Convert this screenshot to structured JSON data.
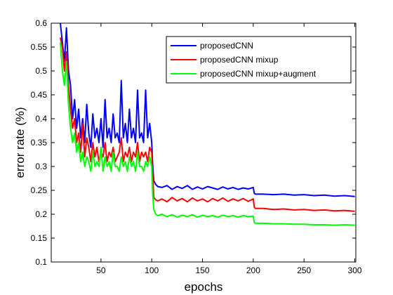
{
  "chart_data": {
    "type": "line",
    "title": "",
    "xlabel": "epochs",
    "ylabel": "error rate (%)",
    "xlim": [
      1,
      301
    ],
    "ylim": [
      0.1,
      0.6
    ],
    "xticks": [
      50,
      100,
      150,
      200,
      250,
      300
    ],
    "yticks": [
      0.1,
      0.15,
      0.2,
      0.25,
      0.3,
      0.35,
      0.4,
      0.45,
      0.5,
      0.55,
      0.6
    ],
    "ytick_labels": [
      "0.1",
      "0.15",
      "0.2",
      "0.25",
      "0.3",
      "0.35",
      "0.4",
      "0.45",
      "0.5",
      "0.55",
      "0.6"
    ],
    "grid": false,
    "legend_position": "top-right",
    "series": [
      {
        "name": "proposedCNN",
        "color": "#0000ff",
        "x": [
          10,
          12,
          14,
          16,
          18,
          20,
          22,
          24,
          26,
          28,
          30,
          32,
          34,
          36,
          38,
          40,
          42,
          44,
          46,
          48,
          50,
          52,
          54,
          56,
          58,
          60,
          62,
          64,
          66,
          68,
          70,
          72,
          74,
          76,
          78,
          80,
          82,
          84,
          86,
          88,
          90,
          92,
          94,
          96,
          98,
          100,
          101,
          102,
          104,
          106,
          110,
          115,
          120,
          125,
          130,
          135,
          140,
          145,
          150,
          155,
          160,
          165,
          170,
          175,
          180,
          185,
          190,
          195,
          200,
          201,
          202,
          210,
          220,
          230,
          240,
          250,
          260,
          270,
          280,
          290,
          300
        ],
        "y": [
          0.6,
          0.56,
          0.52,
          0.59,
          0.5,
          0.47,
          0.4,
          0.44,
          0.38,
          0.42,
          0.36,
          0.4,
          0.35,
          0.43,
          0.37,
          0.34,
          0.41,
          0.36,
          0.38,
          0.35,
          0.4,
          0.34,
          0.44,
          0.36,
          0.38,
          0.35,
          0.41,
          0.36,
          0.37,
          0.35,
          0.48,
          0.36,
          0.39,
          0.35,
          0.42,
          0.36,
          0.38,
          0.35,
          0.46,
          0.36,
          0.37,
          0.35,
          0.46,
          0.36,
          0.39,
          0.35,
          0.3,
          0.27,
          0.262,
          0.258,
          0.256,
          0.26,
          0.252,
          0.258,
          0.254,
          0.26,
          0.252,
          0.257,
          0.253,
          0.258,
          0.255,
          0.252,
          0.257,
          0.253,
          0.256,
          0.252,
          0.255,
          0.253,
          0.256,
          0.244,
          0.242,
          0.242,
          0.241,
          0.242,
          0.24,
          0.241,
          0.239,
          0.24,
          0.238,
          0.239,
          0.237
        ]
      },
      {
        "name": "proposedCNN mixup",
        "color": "#ff0000",
        "x": [
          10,
          12,
          14,
          16,
          18,
          20,
          22,
          24,
          26,
          28,
          30,
          32,
          34,
          36,
          38,
          40,
          42,
          44,
          46,
          48,
          50,
          52,
          54,
          56,
          58,
          60,
          62,
          64,
          66,
          68,
          70,
          72,
          74,
          76,
          78,
          80,
          82,
          84,
          86,
          88,
          90,
          92,
          94,
          96,
          98,
          100,
          101,
          102,
          104,
          106,
          110,
          115,
          120,
          125,
          130,
          135,
          140,
          145,
          150,
          155,
          160,
          165,
          170,
          175,
          180,
          185,
          190,
          195,
          200,
          201,
          202,
          210,
          220,
          230,
          240,
          250,
          260,
          270,
          280,
          290,
          300
        ],
        "y": [
          0.57,
          0.55,
          0.5,
          0.54,
          0.47,
          0.42,
          0.38,
          0.4,
          0.35,
          0.37,
          0.33,
          0.39,
          0.32,
          0.36,
          0.34,
          0.31,
          0.35,
          0.32,
          0.34,
          0.31,
          0.33,
          0.32,
          0.35,
          0.31,
          0.33,
          0.32,
          0.34,
          0.31,
          0.32,
          0.33,
          0.36,
          0.31,
          0.33,
          0.32,
          0.34,
          0.31,
          0.33,
          0.32,
          0.35,
          0.31,
          0.33,
          0.32,
          0.33,
          0.31,
          0.34,
          0.33,
          0.28,
          0.235,
          0.23,
          0.228,
          0.232,
          0.226,
          0.235,
          0.228,
          0.233,
          0.226,
          0.234,
          0.228,
          0.232,
          0.226,
          0.233,
          0.228,
          0.234,
          0.227,
          0.232,
          0.228,
          0.233,
          0.227,
          0.232,
          0.215,
          0.212,
          0.212,
          0.21,
          0.211,
          0.209,
          0.21,
          0.208,
          0.209,
          0.207,
          0.208,
          0.206
        ]
      },
      {
        "name": "proposedCNN mixup+augment",
        "color": "#00ff00",
        "x": [
          10,
          12,
          14,
          16,
          18,
          20,
          22,
          24,
          26,
          28,
          30,
          32,
          34,
          36,
          38,
          40,
          42,
          44,
          46,
          48,
          50,
          52,
          54,
          56,
          58,
          60,
          62,
          64,
          66,
          68,
          70,
          72,
          74,
          76,
          78,
          80,
          82,
          84,
          86,
          88,
          90,
          92,
          94,
          96,
          98,
          100,
          101,
          102,
          104,
          106,
          110,
          115,
          120,
          125,
          130,
          135,
          140,
          145,
          150,
          155,
          160,
          165,
          170,
          175,
          180,
          185,
          190,
          195,
          200,
          201,
          202,
          210,
          220,
          230,
          240,
          250,
          260,
          270,
          280,
          290,
          300
        ],
        "y": [
          0.56,
          0.5,
          0.47,
          0.52,
          0.43,
          0.38,
          0.35,
          0.37,
          0.33,
          0.35,
          0.31,
          0.33,
          0.3,
          0.32,
          0.31,
          0.29,
          0.33,
          0.3,
          0.31,
          0.3,
          0.34,
          0.29,
          0.32,
          0.3,
          0.31,
          0.29,
          0.33,
          0.3,
          0.3,
          0.29,
          0.32,
          0.3,
          0.31,
          0.29,
          0.32,
          0.3,
          0.31,
          0.29,
          0.33,
          0.3,
          0.3,
          0.29,
          0.31,
          0.3,
          0.32,
          0.3,
          0.24,
          0.21,
          0.2,
          0.197,
          0.2,
          0.195,
          0.199,
          0.194,
          0.198,
          0.195,
          0.199,
          0.194,
          0.198,
          0.195,
          0.197,
          0.194,
          0.198,
          0.195,
          0.197,
          0.194,
          0.197,
          0.195,
          0.196,
          0.183,
          0.181,
          0.181,
          0.18,
          0.18,
          0.179,
          0.179,
          0.178,
          0.178,
          0.177,
          0.178,
          0.177
        ]
      }
    ]
  }
}
